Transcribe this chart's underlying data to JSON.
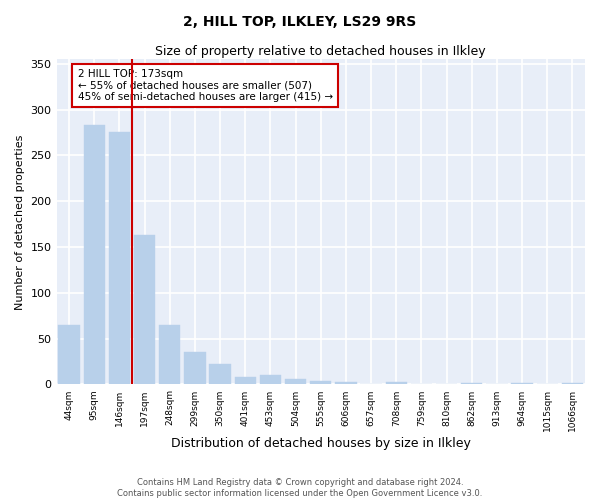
{
  "title": "2, HILL TOP, ILKLEY, LS29 9RS",
  "subtitle": "Size of property relative to detached houses in Ilkley",
  "xlabel": "Distribution of detached houses by size in Ilkley",
  "ylabel": "Number of detached properties",
  "footer_line1": "Contains HM Land Registry data © Crown copyright and database right 2024.",
  "footer_line2": "Contains public sector information licensed under the Open Government Licence v3.0.",
  "categories": [
    "44sqm",
    "95sqm",
    "146sqm",
    "197sqm",
    "248sqm",
    "299sqm",
    "350sqm",
    "401sqm",
    "453sqm",
    "504sqm",
    "555sqm",
    "606sqm",
    "657sqm",
    "708sqm",
    "759sqm",
    "810sqm",
    "862sqm",
    "913sqm",
    "964sqm",
    "1015sqm",
    "1066sqm"
  ],
  "values": [
    65,
    283,
    275,
    163,
    65,
    35,
    22,
    8,
    10,
    6,
    4,
    3,
    0,
    3,
    0,
    0,
    2,
    0,
    2,
    0,
    2
  ],
  "bar_color": "#b8d0ea",
  "bar_edgecolor": "#b8d0ea",
  "background_color": "#e8eef8",
  "grid_color": "#ffffff",
  "vline_x": 2.5,
  "vline_color": "#cc0000",
  "annotation_text": "2 HILL TOP: 173sqm\n← 55% of detached houses are smaller (507)\n45% of semi-detached houses are larger (415) →",
  "annotation_box_edgecolor": "#cc0000",
  "annotation_box_facecolor": "#ffffff",
  "ylim": [
    0,
    355
  ],
  "yticks": [
    0,
    50,
    100,
    150,
    200,
    250,
    300,
    350
  ],
  "title_fontsize": 10,
  "subtitle_fontsize": 9,
  "ylabel_fontsize": 8,
  "xlabel_fontsize": 9
}
